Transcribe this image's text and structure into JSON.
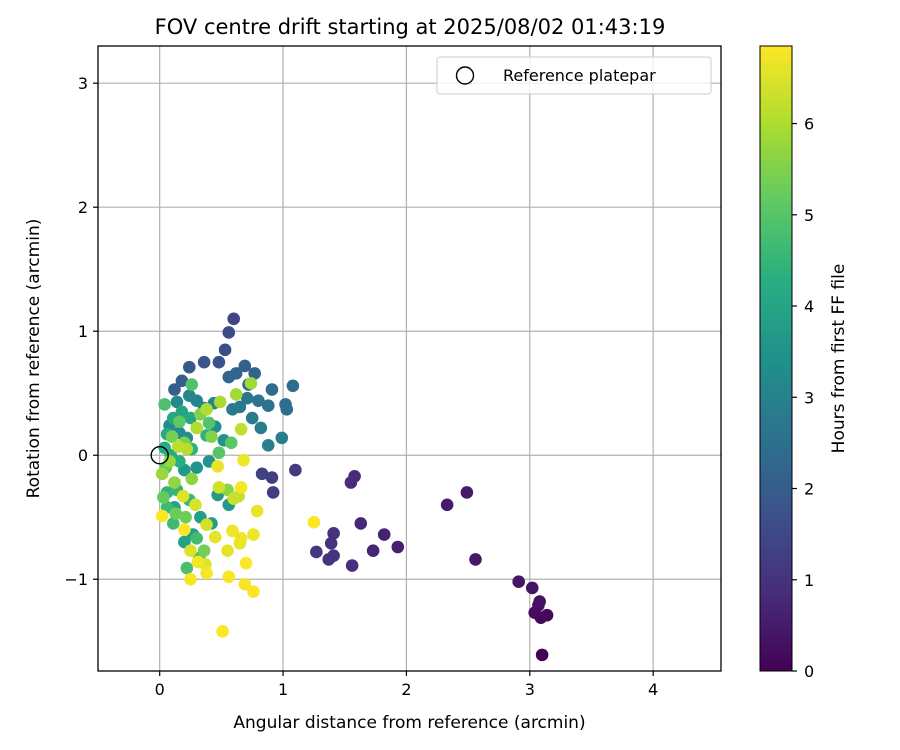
{
  "chart_data": {
    "type": "scatter",
    "title": "FOV centre drift starting at 2025/08/02 01:43:19",
    "xlabel": "Angular distance from reference (arcmin)",
    "ylabel": "Rotation from reference (arcmin)",
    "xlim": [
      -0.5,
      4.55
    ],
    "ylim": [
      -1.74,
      3.3
    ],
    "xticks": [
      0,
      1,
      2,
      3,
      4
    ],
    "yticks": [
      -1,
      0,
      1,
      2,
      3
    ],
    "xtick_labels": [
      "0",
      "1",
      "2",
      "3",
      "4"
    ],
    "ytick_labels": [
      "−1",
      "0",
      "1",
      "2",
      "3"
    ],
    "grid": true,
    "legend": {
      "position": "top-right",
      "entries": [
        {
          "label": "Reference platepar",
          "marker": "open-circle"
        }
      ]
    },
    "reference_point": {
      "x": 0,
      "y": 0,
      "label": "Reference platepar"
    },
    "colorbar": {
      "label": "Hours from first FF file",
      "range": [
        0,
        6.85
      ],
      "ticks": [
        0,
        1,
        2,
        3,
        4,
        5,
        6
      ],
      "tick_labels": [
        "0",
        "1",
        "2",
        "3",
        "4",
        "5",
        "6"
      ],
      "colormap": "viridis"
    },
    "points": [
      {
        "x": 3.1,
        "y": -1.61,
        "c": 0.05
      },
      {
        "x": 3.09,
        "y": -1.31,
        "c": 0.1
      },
      {
        "x": 3.14,
        "y": -1.29,
        "c": 0.15
      },
      {
        "x": 3.04,
        "y": -1.27,
        "c": 0.2
      },
      {
        "x": 3.07,
        "y": -1.21,
        "c": 0.25
      },
      {
        "x": 3.08,
        "y": -1.18,
        "c": 0.3
      },
      {
        "x": 3.02,
        "y": -1.07,
        "c": 0.35
      },
      {
        "x": 2.91,
        "y": -1.02,
        "c": 0.4
      },
      {
        "x": 2.56,
        "y": -0.84,
        "c": 0.45
      },
      {
        "x": 2.49,
        "y": -0.3,
        "c": 0.5
      },
      {
        "x": 2.33,
        "y": -0.4,
        "c": 0.55
      },
      {
        "x": 1.93,
        "y": -0.74,
        "c": 0.6
      },
      {
        "x": 1.82,
        "y": -0.64,
        "c": 0.65
      },
      {
        "x": 1.73,
        "y": -0.77,
        "c": 0.7
      },
      {
        "x": 1.63,
        "y": -0.55,
        "c": 0.75
      },
      {
        "x": 1.58,
        "y": -0.17,
        "c": 0.8
      },
      {
        "x": 1.55,
        "y": -0.22,
        "c": 0.85
      },
      {
        "x": 1.56,
        "y": -0.89,
        "c": 0.9
      },
      {
        "x": 1.41,
        "y": -0.63,
        "c": 0.95
      },
      {
        "x": 1.39,
        "y": -0.71,
        "c": 1.0
      },
      {
        "x": 1.37,
        "y": -0.84,
        "c": 1.02
      },
      {
        "x": 1.41,
        "y": -0.81,
        "c": 1.05
      },
      {
        "x": 1.27,
        "y": -0.78,
        "c": 1.1
      },
      {
        "x": 1.1,
        "y": -0.12,
        "c": 1.15
      },
      {
        "x": 0.92,
        "y": -0.3,
        "c": 1.2
      },
      {
        "x": 0.91,
        "y": -0.18,
        "c": 1.25
      },
      {
        "x": 0.83,
        "y": -0.15,
        "c": 1.3
      },
      {
        "x": 0.6,
        "y": 1.1,
        "c": 1.4
      },
      {
        "x": 0.56,
        "y": 0.99,
        "c": 1.5
      },
      {
        "x": 0.53,
        "y": 0.85,
        "c": 1.6
      },
      {
        "x": 0.48,
        "y": 0.75,
        "c": 1.7
      },
      {
        "x": 0.36,
        "y": 0.75,
        "c": 1.8
      },
      {
        "x": 0.24,
        "y": 0.71,
        "c": 1.9
      },
      {
        "x": 0.18,
        "y": 0.6,
        "c": 2.0
      },
      {
        "x": 0.12,
        "y": 0.53,
        "c": 2.05
      },
      {
        "x": 0.69,
        "y": 0.72,
        "c": 2.1
      },
      {
        "x": 0.77,
        "y": 0.66,
        "c": 2.15
      },
      {
        "x": 0.62,
        "y": 0.66,
        "c": 2.2
      },
      {
        "x": 0.56,
        "y": 0.63,
        "c": 2.25
      },
      {
        "x": 0.72,
        "y": 0.57,
        "c": 2.3
      },
      {
        "x": 0.91,
        "y": 0.53,
        "c": 2.35
      },
      {
        "x": 1.08,
        "y": 0.56,
        "c": 2.4
      },
      {
        "x": 1.02,
        "y": 0.41,
        "c": 2.45
      },
      {
        "x": 1.03,
        "y": 0.37,
        "c": 2.5
      },
      {
        "x": 0.88,
        "y": 0.4,
        "c": 2.55
      },
      {
        "x": 0.8,
        "y": 0.44,
        "c": 2.6
      },
      {
        "x": 0.71,
        "y": 0.46,
        "c": 2.65
      },
      {
        "x": 0.65,
        "y": 0.39,
        "c": 2.7
      },
      {
        "x": 0.59,
        "y": 0.37,
        "c": 2.75
      },
      {
        "x": 0.75,
        "y": 0.3,
        "c": 2.8
      },
      {
        "x": 0.82,
        "y": 0.22,
        "c": 2.85
      },
      {
        "x": 0.99,
        "y": 0.14,
        "c": 2.9
      },
      {
        "x": 0.88,
        "y": 0.08,
        "c": 2.95
      },
      {
        "x": 0.44,
        "y": 0.42,
        "c": 3.0
      },
      {
        "x": 0.36,
        "y": 0.38,
        "c": 3.05
      },
      {
        "x": 0.3,
        "y": 0.44,
        "c": 3.1
      },
      {
        "x": 0.24,
        "y": 0.48,
        "c": 3.15
      },
      {
        "x": 0.14,
        "y": 0.43,
        "c": 3.2
      },
      {
        "x": 0.08,
        "y": 0.24,
        "c": 3.25
      },
      {
        "x": 0.16,
        "y": 0.18,
        "c": 3.3
      },
      {
        "x": 0.22,
        "y": 0.14,
        "c": 3.35
      },
      {
        "x": 0.45,
        "y": 0.23,
        "c": 3.4
      },
      {
        "x": 0.52,
        "y": 0.12,
        "c": 3.45
      },
      {
        "x": 0.4,
        "y": -0.05,
        "c": 3.5
      },
      {
        "x": 0.3,
        "y": -0.1,
        "c": 3.55
      },
      {
        "x": 0.2,
        "y": -0.12,
        "c": 3.6
      },
      {
        "x": 0.56,
        "y": -0.4,
        "c": 3.65
      },
      {
        "x": 0.47,
        "y": -0.32,
        "c": 3.7
      },
      {
        "x": 0.42,
        "y": -0.55,
        "c": 3.75
      },
      {
        "x": 0.33,
        "y": -0.5,
        "c": 3.8
      },
      {
        "x": 0.27,
        "y": -0.64,
        "c": 3.85
      },
      {
        "x": 0.2,
        "y": -0.7,
        "c": 3.9
      },
      {
        "x": 0.12,
        "y": -0.42,
        "c": 3.95
      },
      {
        "x": 0.18,
        "y": 0.35,
        "c": 4.0
      },
      {
        "x": 0.25,
        "y": 0.3,
        "c": 4.05
      },
      {
        "x": 0.11,
        "y": 0.3,
        "c": 4.1
      },
      {
        "x": 0.06,
        "y": 0.17,
        "c": 4.15
      },
      {
        "x": 0.04,
        "y": 0.06,
        "c": 4.2
      },
      {
        "x": 0.09,
        "y": 0.0,
        "c": 4.25
      },
      {
        "x": 0.16,
        "y": -0.05,
        "c": 4.3
      },
      {
        "x": 0.26,
        "y": 0.05,
        "c": 4.35
      },
      {
        "x": 0.38,
        "y": 0.16,
        "c": 4.4
      },
      {
        "x": 0.06,
        "y": -0.3,
        "c": 4.45
      },
      {
        "x": 0.14,
        "y": -0.28,
        "c": 4.5
      },
      {
        "x": 0.24,
        "y": -0.36,
        "c": 4.55
      },
      {
        "x": 0.06,
        "y": -0.42,
        "c": 4.6
      },
      {
        "x": 0.11,
        "y": -0.55,
        "c": 4.65
      },
      {
        "x": 0.3,
        "y": -0.67,
        "c": 4.7
      },
      {
        "x": 0.32,
        "y": -0.83,
        "c": 4.75
      },
      {
        "x": 0.22,
        "y": -0.91,
        "c": 4.8
      },
      {
        "x": 0.04,
        "y": 0.41,
        "c": 4.85
      },
      {
        "x": 0.26,
        "y": 0.57,
        "c": 4.9
      },
      {
        "x": 0.4,
        "y": 0.26,
        "c": 4.95
      },
      {
        "x": 0.48,
        "y": 0.02,
        "c": 5.0
      },
      {
        "x": 0.58,
        "y": 0.1,
        "c": 5.05
      },
      {
        "x": 0.16,
        "y": 0.27,
        "c": 5.1
      },
      {
        "x": 0.05,
        "y": -0.1,
        "c": 5.15
      },
      {
        "x": 0.03,
        "y": -0.34,
        "c": 5.2
      },
      {
        "x": 0.13,
        "y": -0.47,
        "c": 5.25
      },
      {
        "x": 0.21,
        "y": -0.5,
        "c": 5.3
      },
      {
        "x": 0.36,
        "y": -0.77,
        "c": 5.35
      },
      {
        "x": 0.1,
        "y": 0.15,
        "c": 5.4
      },
      {
        "x": 0.2,
        "y": 0.1,
        "c": 5.45
      },
      {
        "x": 0.33,
        "y": 0.33,
        "c": 5.5
      },
      {
        "x": 0.42,
        "y": 0.15,
        "c": 5.55
      },
      {
        "x": 0.55,
        "y": -0.28,
        "c": 5.6
      },
      {
        "x": 0.26,
        "y": -0.19,
        "c": 5.65
      },
      {
        "x": 0.12,
        "y": -0.22,
        "c": 5.7
      },
      {
        "x": 0.08,
        "y": -0.05,
        "c": 5.75
      },
      {
        "x": 0.02,
        "y": -0.15,
        "c": 5.8
      },
      {
        "x": 0.74,
        "y": 0.58,
        "c": 5.85
      },
      {
        "x": 0.62,
        "y": 0.49,
        "c": 5.9
      },
      {
        "x": 0.49,
        "y": 0.43,
        "c": 5.95
      },
      {
        "x": 0.38,
        "y": 0.37,
        "c": 6.0
      },
      {
        "x": 0.3,
        "y": 0.22,
        "c": 6.05
      },
      {
        "x": 0.22,
        "y": 0.05,
        "c": 6.1
      },
      {
        "x": 0.15,
        "y": 0.07,
        "c": 6.15
      },
      {
        "x": 0.66,
        "y": 0.21,
        "c": 6.2
      },
      {
        "x": 0.64,
        "y": -0.33,
        "c": 6.25
      },
      {
        "x": 0.6,
        "y": -0.35,
        "c": 6.3
      },
      {
        "x": 0.48,
        "y": -0.26,
        "c": 6.35
      },
      {
        "x": 0.38,
        "y": -0.56,
        "c": 6.4
      },
      {
        "x": 0.29,
        "y": -0.4,
        "c": 6.45
      },
      {
        "x": 0.19,
        "y": -0.33,
        "c": 6.5
      },
      {
        "x": 0.25,
        "y": -0.77,
        "c": 6.52
      },
      {
        "x": 0.37,
        "y": -0.88,
        "c": 6.55
      },
      {
        "x": 0.45,
        "y": -0.66,
        "c": 6.58
      },
      {
        "x": 0.55,
        "y": -0.77,
        "c": 6.6
      },
      {
        "x": 0.65,
        "y": -0.71,
        "c": 6.63
      },
      {
        "x": 0.79,
        "y": -0.45,
        "c": 6.65
      },
      {
        "x": 0.76,
        "y": -0.64,
        "c": 6.68
      },
      {
        "x": 0.66,
        "y": -0.67,
        "c": 6.7
      },
      {
        "x": 0.59,
        "y": -0.61,
        "c": 6.72
      },
      {
        "x": 0.31,
        "y": -0.86,
        "c": 6.74
      },
      {
        "x": 0.38,
        "y": -0.95,
        "c": 6.76
      },
      {
        "x": 0.25,
        "y": -1.0,
        "c": 6.78
      },
      {
        "x": 0.56,
        "y": -0.98,
        "c": 6.79
      },
      {
        "x": 0.69,
        "y": -1.04,
        "c": 6.8
      },
      {
        "x": 0.76,
        "y": -1.1,
        "c": 6.81
      },
      {
        "x": 0.7,
        "y": -0.87,
        "c": 6.82
      },
      {
        "x": 0.51,
        "y": -1.42,
        "c": 6.83
      },
      {
        "x": 0.02,
        "y": -0.49,
        "c": 6.84
      },
      {
        "x": 1.25,
        "y": -0.54,
        "c": 6.85
      },
      {
        "x": 0.2,
        "y": -0.6,
        "c": 6.84
      },
      {
        "x": 0.66,
        "y": -0.26,
        "c": 6.75
      },
      {
        "x": 0.68,
        "y": -0.04,
        "c": 6.7
      },
      {
        "x": 0.47,
        "y": -0.09,
        "c": 6.65
      }
    ]
  }
}
